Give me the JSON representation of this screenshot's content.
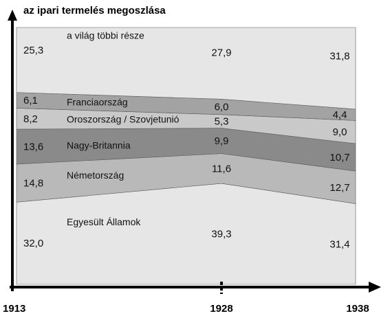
{
  "chart_data": {
    "type": "area",
    "title": "az ipari termelés megoszlása",
    "x": [
      "1913",
      "1928",
      "1938"
    ],
    "stacking": "stacked-100",
    "ylim": [
      0,
      100
    ],
    "series": [
      {
        "name": "Egyesült Államok",
        "values": [
          32.0,
          39.3,
          31.4
        ],
        "value_labels": [
          "32,0",
          "39,3",
          "31,4"
        ],
        "color": "#e6e6e6"
      },
      {
        "name": "Németország",
        "values": [
          14.8,
          11.6,
          12.7
        ],
        "value_labels": [
          "14,8",
          "11,6",
          "12,7"
        ],
        "color": "#b9b9b9"
      },
      {
        "name": "Nagy-Britannia",
        "values": [
          13.6,
          9.9,
          10.7
        ],
        "value_labels": [
          "13,6",
          "9,9",
          "10,7"
        ],
        "color": "#8a8a8a"
      },
      {
        "name": "Oroszország / Szovjetunió",
        "values": [
          8.2,
          5.3,
          9.0
        ],
        "value_labels": [
          "8,2",
          "5,3",
          "9,0"
        ],
        "color": "#c9c9c9"
      },
      {
        "name": "Franciaország",
        "values": [
          6.1,
          6.0,
          4.4
        ],
        "value_labels": [
          "6,1",
          "6,0",
          "4,4"
        ],
        "color": "#a3a3a3"
      },
      {
        "name": "a világ többi része",
        "values": [
          25.3,
          27.9,
          31.8
        ],
        "value_labels": [
          "25,3",
          "27,9",
          "31,8"
        ],
        "color": "#e6e6e6"
      }
    ]
  }
}
